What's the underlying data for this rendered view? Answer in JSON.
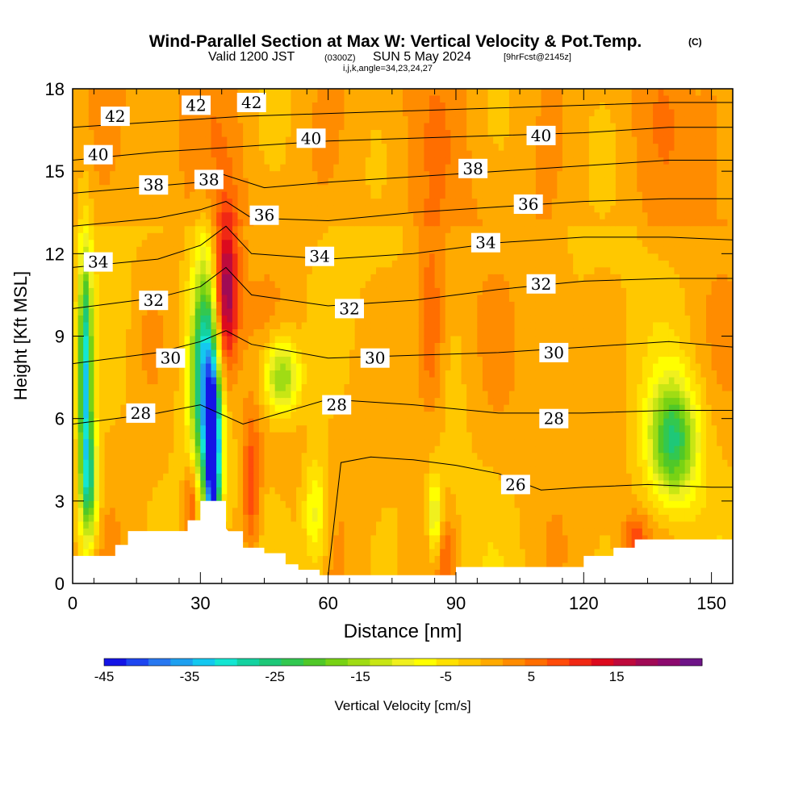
{
  "header": {
    "title": "Wind-Parallel Section at Max W: Vertical Velocity & Pot.Temp.",
    "copyright": "(C)",
    "valid_a": "Valid 1200 JST",
    "valid_b": "(0300Z)",
    "valid_c": "SUN 5 May 2024",
    "valid_d": "[9hrFcst@2145z]",
    "indices": "i,j,k,angle=34,23,24,27"
  },
  "chart_data": {
    "type": "heatmap",
    "title": "Wind-Parallel Section at Max W: Vertical Velocity & Pot.Temp.",
    "xlabel": "Distance [nm]",
    "ylabel": "Height [Kft MSL]",
    "xlim": [
      0,
      155
    ],
    "ylim": [
      0,
      18
    ],
    "xticks": [
      0,
      30,
      60,
      90,
      120,
      150
    ],
    "yticks": [
      0,
      3,
      6,
      9,
      12,
      15,
      18
    ],
    "colorbar": {
      "label": "Vertical Velocity [cm/s]",
      "range": [
        -45,
        25
      ],
      "step": 2.5,
      "tick_values": [
        -45,
        -35,
        -25,
        -15,
        -5,
        5,
        15
      ],
      "colors": [
        "#1414e6",
        "#1e46f0",
        "#2878f0",
        "#1ea0f0",
        "#14c8f0",
        "#14e6d2",
        "#14d2a0",
        "#1ec878",
        "#32c850",
        "#50c828",
        "#78d214",
        "#a0dc14",
        "#c8e614",
        "#f0f01e",
        "#ffff00",
        "#ffe100",
        "#ffc800",
        "#ffaa00",
        "#ff8c00",
        "#ff6e00",
        "#ff4b0a",
        "#f02814",
        "#dc0a1e",
        "#be0a3c",
        "#a00a55",
        "#8c0a6e",
        "#6e1487"
      ]
    },
    "background_velocity": -2,
    "velocity_features": [
      {
        "x": 3,
        "y": 7.5,
        "sx": 1.2,
        "sy": 3.2,
        "value": -30
      },
      {
        "x": 4,
        "y": 3.5,
        "sx": 1.5,
        "sy": 1.5,
        "value": -18
      },
      {
        "x": 31,
        "y": 7.5,
        "sx": 2.2,
        "sy": 3.0,
        "value": -30
      },
      {
        "x": 33,
        "y": 4.5,
        "sx": 1.2,
        "sy": 2.2,
        "value": -45
      },
      {
        "x": 36,
        "y": 10.5,
        "sx": 2.0,
        "sy": 2.0,
        "value": 20
      },
      {
        "x": 28,
        "y": 3.0,
        "sx": 1.2,
        "sy": 1.0,
        "value": 10
      },
      {
        "x": 42,
        "y": 3.5,
        "sx": 1.5,
        "sy": 1.8,
        "value": 10
      },
      {
        "x": 49,
        "y": 7.5,
        "sx": 3.0,
        "sy": 1.0,
        "value": -18
      },
      {
        "x": 84,
        "y": 9.0,
        "sx": 2.5,
        "sy": 2.5,
        "value": 9
      },
      {
        "x": 85,
        "y": 2.5,
        "sx": 1.0,
        "sy": 1.0,
        "value": -12
      },
      {
        "x": 88,
        "y": 1.0,
        "sx": 1.5,
        "sy": 0.8,
        "value": 6
      },
      {
        "x": 141,
        "y": 5.2,
        "sx": 4.0,
        "sy": 1.5,
        "value": -22
      },
      {
        "x": 113,
        "y": 8.8,
        "sx": 3.0,
        "sy": 2.0,
        "value": 3
      },
      {
        "x": 132,
        "y": 1.7,
        "sx": 2.0,
        "sy": 0.6,
        "value": 8
      },
      {
        "x": 18,
        "y": 9.5,
        "sx": 3.0,
        "sy": 2.0,
        "value": 2
      },
      {
        "x": 57,
        "y": 2.5,
        "sx": 2.0,
        "sy": 1.5,
        "value": -10
      },
      {
        "x": 150,
        "y": 16.5,
        "sx": 2.0,
        "sy": 1.5,
        "value": 3
      }
    ],
    "terrain": {
      "x": [
        0,
        6,
        6,
        10,
        10,
        13,
        13,
        40,
        40,
        45,
        45,
        50,
        50,
        53,
        53,
        58,
        58,
        90,
        90,
        105,
        105,
        120,
        120,
        127,
        127,
        132,
        132,
        155
      ],
      "y": [
        1.0,
        1.0,
        1.0,
        1.0,
        1.4,
        1.4,
        1.9,
        1.9,
        1.3,
        1.3,
        1.1,
        1.1,
        0.7,
        0.7,
        0.5,
        0.5,
        0.3,
        0.3,
        0.6,
        0.6,
        0.6,
        0.6,
        1.0,
        1.0,
        1.3,
        1.3,
        1.6,
        1.6
      ],
      "peaks": [
        {
          "x": [
            13,
            27,
            27,
            30,
            30,
            36,
            36,
            40
          ],
          "y": [
            1.9,
            1.9,
            2.3,
            2.3,
            3.0,
            3.0,
            2.0,
            1.3
          ]
        }
      ]
    },
    "theta_contours": [
      {
        "value": 42,
        "x": [
          0,
          20,
          40,
          60,
          80,
          100,
          120,
          140,
          155
        ],
        "y": [
          16.6,
          16.8,
          17.0,
          17.1,
          17.2,
          17.3,
          17.4,
          17.5,
          17.5
        ],
        "labels": [
          {
            "x": 10,
            "y": 17.0
          },
          {
            "x": 29,
            "y": 17.4
          },
          {
            "x": 42,
            "y": 17.5
          }
        ]
      },
      {
        "value": 40,
        "x": [
          0,
          20,
          40,
          60,
          80,
          100,
          120,
          140,
          155
        ],
        "y": [
          15.4,
          15.7,
          15.9,
          16.1,
          16.2,
          16.3,
          16.4,
          16.6,
          16.6
        ],
        "labels": [
          {
            "x": 6,
            "y": 15.6
          },
          {
            "x": 56,
            "y": 16.2
          },
          {
            "x": 110,
            "y": 16.3
          }
        ]
      },
      {
        "value": 38,
        "x": [
          0,
          15,
          30,
          35,
          45,
          60,
          80,
          100,
          120,
          140,
          155
        ],
        "y": [
          14.2,
          14.4,
          14.6,
          14.9,
          14.4,
          14.6,
          14.8,
          15.0,
          15.2,
          15.4,
          15.4
        ],
        "labels": [
          {
            "x": 19,
            "y": 14.5
          },
          {
            "x": 32,
            "y": 14.7
          },
          {
            "x": 94,
            "y": 15.1
          }
        ]
      },
      {
        "value": 36,
        "x": [
          0,
          20,
          30,
          36,
          42,
          60,
          80,
          100,
          120,
          140,
          155
        ],
        "y": [
          13.0,
          13.3,
          13.6,
          13.9,
          13.3,
          13.2,
          13.5,
          13.7,
          13.9,
          14.0,
          14.0
        ],
        "labels": [
          {
            "x": 45,
            "y": 13.4
          },
          {
            "x": 107,
            "y": 13.8
          }
        ]
      },
      {
        "value": 34,
        "x": [
          0,
          20,
          30,
          36,
          42,
          60,
          80,
          100,
          120,
          140,
          155
        ],
        "y": [
          11.5,
          11.8,
          12.3,
          13.0,
          12.0,
          11.8,
          12.0,
          12.4,
          12.6,
          12.6,
          12.5
        ],
        "labels": [
          {
            "x": 6,
            "y": 11.7
          },
          {
            "x": 58,
            "y": 11.9
          },
          {
            "x": 97,
            "y": 12.4
          }
        ]
      },
      {
        "value": 32,
        "x": [
          0,
          20,
          30,
          36,
          42,
          60,
          80,
          100,
          120,
          140,
          155
        ],
        "y": [
          10.0,
          10.4,
          10.8,
          11.5,
          10.5,
          10.1,
          10.3,
          10.7,
          11.0,
          11.1,
          11.1
        ],
        "labels": [
          {
            "x": 19,
            "y": 10.3
          },
          {
            "x": 65,
            "y": 10.0
          },
          {
            "x": 110,
            "y": 10.9
          }
        ]
      },
      {
        "value": 30,
        "x": [
          0,
          20,
          30,
          36,
          42,
          60,
          80,
          100,
          120,
          140,
          155
        ],
        "y": [
          8.0,
          8.4,
          8.8,
          9.2,
          8.7,
          8.2,
          8.3,
          8.4,
          8.6,
          8.8,
          8.6
        ],
        "labels": [
          {
            "x": 23,
            "y": 8.2
          },
          {
            "x": 71,
            "y": 8.2
          },
          {
            "x": 113,
            "y": 8.4
          }
        ]
      },
      {
        "value": 28,
        "x": [
          0,
          20,
          30,
          40,
          60,
          80,
          100,
          120,
          140,
          155
        ],
        "y": [
          5.8,
          6.2,
          6.5,
          5.8,
          6.7,
          6.5,
          6.2,
          6.2,
          6.3,
          6.3
        ],
        "labels": [
          {
            "x": 16,
            "y": 6.2
          },
          {
            "x": 62,
            "y": 6.5
          },
          {
            "x": 113,
            "y": 6.0
          }
        ]
      },
      {
        "value": 26,
        "x": [
          60,
          63,
          70,
          80,
          90,
          100,
          110,
          120,
          135,
          150,
          155
        ],
        "y": [
          0.3,
          4.4,
          4.6,
          4.5,
          4.3,
          4.0,
          3.4,
          3.5,
          3.6,
          3.5,
          3.5
        ],
        "labels": [
          {
            "x": 104,
            "y": 3.6
          }
        ]
      }
    ]
  }
}
